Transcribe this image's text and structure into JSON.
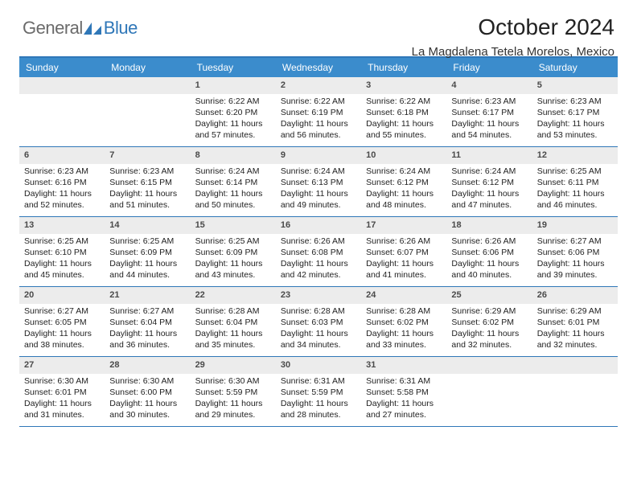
{
  "brand": {
    "part1": "General",
    "part2": "Blue"
  },
  "title": "October 2024",
  "location": "La Magdalena Tetela Morelos, Mexico",
  "colors": {
    "header_bar": "#3b8ccc",
    "accent": "#2f77b8",
    "daynum_bg": "#ececec",
    "text": "#222222",
    "logo_gray": "#6b6b6b"
  },
  "day_names": [
    "Sunday",
    "Monday",
    "Tuesday",
    "Wednesday",
    "Thursday",
    "Friday",
    "Saturday"
  ],
  "weeks": [
    [
      {
        "n": "",
        "sunrise": "",
        "sunset": "",
        "daylight": ""
      },
      {
        "n": "",
        "sunrise": "",
        "sunset": "",
        "daylight": ""
      },
      {
        "n": "1",
        "sunrise": "Sunrise: 6:22 AM",
        "sunset": "Sunset: 6:20 PM",
        "daylight": "Daylight: 11 hours and 57 minutes."
      },
      {
        "n": "2",
        "sunrise": "Sunrise: 6:22 AM",
        "sunset": "Sunset: 6:19 PM",
        "daylight": "Daylight: 11 hours and 56 minutes."
      },
      {
        "n": "3",
        "sunrise": "Sunrise: 6:22 AM",
        "sunset": "Sunset: 6:18 PM",
        "daylight": "Daylight: 11 hours and 55 minutes."
      },
      {
        "n": "4",
        "sunrise": "Sunrise: 6:23 AM",
        "sunset": "Sunset: 6:17 PM",
        "daylight": "Daylight: 11 hours and 54 minutes."
      },
      {
        "n": "5",
        "sunrise": "Sunrise: 6:23 AM",
        "sunset": "Sunset: 6:17 PM",
        "daylight": "Daylight: 11 hours and 53 minutes."
      }
    ],
    [
      {
        "n": "6",
        "sunrise": "Sunrise: 6:23 AM",
        "sunset": "Sunset: 6:16 PM",
        "daylight": "Daylight: 11 hours and 52 minutes."
      },
      {
        "n": "7",
        "sunrise": "Sunrise: 6:23 AM",
        "sunset": "Sunset: 6:15 PM",
        "daylight": "Daylight: 11 hours and 51 minutes."
      },
      {
        "n": "8",
        "sunrise": "Sunrise: 6:24 AM",
        "sunset": "Sunset: 6:14 PM",
        "daylight": "Daylight: 11 hours and 50 minutes."
      },
      {
        "n": "9",
        "sunrise": "Sunrise: 6:24 AM",
        "sunset": "Sunset: 6:13 PM",
        "daylight": "Daylight: 11 hours and 49 minutes."
      },
      {
        "n": "10",
        "sunrise": "Sunrise: 6:24 AM",
        "sunset": "Sunset: 6:12 PM",
        "daylight": "Daylight: 11 hours and 48 minutes."
      },
      {
        "n": "11",
        "sunrise": "Sunrise: 6:24 AM",
        "sunset": "Sunset: 6:12 PM",
        "daylight": "Daylight: 11 hours and 47 minutes."
      },
      {
        "n": "12",
        "sunrise": "Sunrise: 6:25 AM",
        "sunset": "Sunset: 6:11 PM",
        "daylight": "Daylight: 11 hours and 46 minutes."
      }
    ],
    [
      {
        "n": "13",
        "sunrise": "Sunrise: 6:25 AM",
        "sunset": "Sunset: 6:10 PM",
        "daylight": "Daylight: 11 hours and 45 minutes."
      },
      {
        "n": "14",
        "sunrise": "Sunrise: 6:25 AM",
        "sunset": "Sunset: 6:09 PM",
        "daylight": "Daylight: 11 hours and 44 minutes."
      },
      {
        "n": "15",
        "sunrise": "Sunrise: 6:25 AM",
        "sunset": "Sunset: 6:09 PM",
        "daylight": "Daylight: 11 hours and 43 minutes."
      },
      {
        "n": "16",
        "sunrise": "Sunrise: 6:26 AM",
        "sunset": "Sunset: 6:08 PM",
        "daylight": "Daylight: 11 hours and 42 minutes."
      },
      {
        "n": "17",
        "sunrise": "Sunrise: 6:26 AM",
        "sunset": "Sunset: 6:07 PM",
        "daylight": "Daylight: 11 hours and 41 minutes."
      },
      {
        "n": "18",
        "sunrise": "Sunrise: 6:26 AM",
        "sunset": "Sunset: 6:06 PM",
        "daylight": "Daylight: 11 hours and 40 minutes."
      },
      {
        "n": "19",
        "sunrise": "Sunrise: 6:27 AM",
        "sunset": "Sunset: 6:06 PM",
        "daylight": "Daylight: 11 hours and 39 minutes."
      }
    ],
    [
      {
        "n": "20",
        "sunrise": "Sunrise: 6:27 AM",
        "sunset": "Sunset: 6:05 PM",
        "daylight": "Daylight: 11 hours and 38 minutes."
      },
      {
        "n": "21",
        "sunrise": "Sunrise: 6:27 AM",
        "sunset": "Sunset: 6:04 PM",
        "daylight": "Daylight: 11 hours and 36 minutes."
      },
      {
        "n": "22",
        "sunrise": "Sunrise: 6:28 AM",
        "sunset": "Sunset: 6:04 PM",
        "daylight": "Daylight: 11 hours and 35 minutes."
      },
      {
        "n": "23",
        "sunrise": "Sunrise: 6:28 AM",
        "sunset": "Sunset: 6:03 PM",
        "daylight": "Daylight: 11 hours and 34 minutes."
      },
      {
        "n": "24",
        "sunrise": "Sunrise: 6:28 AM",
        "sunset": "Sunset: 6:02 PM",
        "daylight": "Daylight: 11 hours and 33 minutes."
      },
      {
        "n": "25",
        "sunrise": "Sunrise: 6:29 AM",
        "sunset": "Sunset: 6:02 PM",
        "daylight": "Daylight: 11 hours and 32 minutes."
      },
      {
        "n": "26",
        "sunrise": "Sunrise: 6:29 AM",
        "sunset": "Sunset: 6:01 PM",
        "daylight": "Daylight: 11 hours and 32 minutes."
      }
    ],
    [
      {
        "n": "27",
        "sunrise": "Sunrise: 6:30 AM",
        "sunset": "Sunset: 6:01 PM",
        "daylight": "Daylight: 11 hours and 31 minutes."
      },
      {
        "n": "28",
        "sunrise": "Sunrise: 6:30 AM",
        "sunset": "Sunset: 6:00 PM",
        "daylight": "Daylight: 11 hours and 30 minutes."
      },
      {
        "n": "29",
        "sunrise": "Sunrise: 6:30 AM",
        "sunset": "Sunset: 5:59 PM",
        "daylight": "Daylight: 11 hours and 29 minutes."
      },
      {
        "n": "30",
        "sunrise": "Sunrise: 6:31 AM",
        "sunset": "Sunset: 5:59 PM",
        "daylight": "Daylight: 11 hours and 28 minutes."
      },
      {
        "n": "31",
        "sunrise": "Sunrise: 6:31 AM",
        "sunset": "Sunset: 5:58 PM",
        "daylight": "Daylight: 11 hours and 27 minutes."
      },
      {
        "n": "",
        "sunrise": "",
        "sunset": "",
        "daylight": ""
      },
      {
        "n": "",
        "sunrise": "",
        "sunset": "",
        "daylight": ""
      }
    ]
  ]
}
